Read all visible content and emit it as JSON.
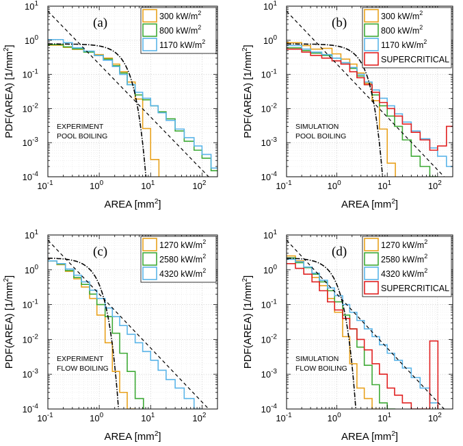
{
  "chart_data": [
    {
      "panel": "(a)",
      "type": "line",
      "xlabel": "AREA",
      "xlabel_unit": "[mm",
      "xlabel_unit_tail": "]",
      "ylabel": "PDF(AREA)",
      "ylabel_unit": "[1/mm",
      "xlim": [
        0.1,
        200
      ],
      "ylim": [
        0.0001,
        10
      ],
      "xscale": "log",
      "yscale": "log",
      "grid": true,
      "legend": "top-right",
      "annotation": [
        "EXPERIMENT",
        "POOL BOILING"
      ],
      "series": [
        {
          "name": "300 kW/m",
          "color": "#E8A11C",
          "x": [
            0.1,
            0.2,
            0.3,
            0.5,
            0.8,
            1.2,
            1.8,
            2.5,
            3.5,
            5,
            7,
            10
          ],
          "y": [
            0.72,
            0.62,
            0.54,
            0.46,
            0.38,
            0.3,
            0.2,
            0.12,
            0.06,
            0.019,
            0.0026,
            0.00032
          ]
        },
        {
          "name": "800 kW/m",
          "color": "#3DA935",
          "x": [
            0.1,
            0.2,
            0.3,
            0.5,
            0.8,
            1.2,
            1.8,
            2.5,
            3.5,
            5,
            7,
            10,
            14,
            20,
            30,
            45,
            70,
            100,
            150
          ],
          "y": [
            0.75,
            0.64,
            0.56,
            0.45,
            0.36,
            0.28,
            0.18,
            0.11,
            0.05,
            0.025,
            0.018,
            0.012,
            0.008,
            0.005,
            0.0022,
            0.0011,
            0.0006,
            0.00035,
            0.00015
          ]
        },
        {
          "name": "1170 kW/m",
          "color": "#5AB4E8",
          "x": [
            0.1,
            0.2,
            0.3,
            0.5,
            0.8,
            1.2,
            1.8,
            2.5,
            3.5,
            5,
            7,
            10,
            14,
            20,
            30,
            45,
            70,
            100,
            150
          ],
          "y": [
            1.05,
            0.85,
            0.6,
            0.48,
            0.36,
            0.26,
            0.17,
            0.1,
            0.05,
            0.03,
            0.02,
            0.012,
            0.0075,
            0.0045,
            0.0025,
            0.0014,
            0.0008,
            0.00045,
            0.00018
          ]
        }
      ]
    },
    {
      "panel": "(b)",
      "type": "line",
      "xlabel": "AREA",
      "xlabel_unit": "[mm",
      "xlabel_unit_tail": "]",
      "ylabel": "PDF(AREA)",
      "ylabel_unit": "[1/mm",
      "xlim": [
        0.1,
        200
      ],
      "ylim": [
        0.0001,
        10
      ],
      "xscale": "log",
      "yscale": "log",
      "grid": true,
      "legend": "top-right",
      "annotation": [
        "SIMULATION",
        "POOL BOILING"
      ],
      "series": [
        {
          "name": "300 kW/m",
          "color": "#E8A11C",
          "x": [
            0.1,
            0.2,
            0.3,
            0.5,
            0.8,
            1.2,
            1.8,
            2.5,
            3.5,
            5,
            7,
            10
          ],
          "y": [
            0.85,
            0.7,
            0.55,
            0.58,
            0.4,
            0.28,
            0.2,
            0.11,
            0.055,
            0.017,
            0.0025,
            0.00025
          ]
        },
        {
          "name": "800 kW/m",
          "color": "#3DA935",
          "x": [
            0.1,
            0.2,
            0.3,
            0.5,
            0.8,
            1.2,
            1.8,
            2.5,
            3.5,
            5,
            7,
            10,
            14,
            20,
            30,
            45,
            70
          ],
          "y": [
            0.6,
            0.5,
            0.42,
            0.36,
            0.3,
            0.22,
            0.15,
            0.09,
            0.05,
            0.025,
            0.012,
            0.006,
            0.003,
            0.0012,
            0.0004,
            0.0002,
            0.0001
          ]
        },
        {
          "name": "1170 kW/m",
          "color": "#5AB4E8",
          "x": [
            0.1,
            0.2,
            0.3,
            0.5,
            0.8,
            1.2,
            1.8,
            2.5,
            3.5,
            5,
            7,
            10,
            14,
            20,
            30,
            45,
            70,
            100,
            150
          ],
          "y": [
            0.7,
            0.55,
            0.45,
            0.38,
            0.3,
            0.22,
            0.16,
            0.1,
            0.06,
            0.035,
            0.02,
            0.012,
            0.007,
            0.004,
            0.0022,
            0.0013,
            0.0007,
            0.0004,
            0.0002
          ]
        },
        {
          "name": "SUPERCRITICAL",
          "color": "#E02020",
          "x": [
            0.1,
            0.2,
            0.3,
            0.5,
            0.8,
            1.2,
            1.8,
            2.5,
            3.5,
            5,
            7,
            10,
            14,
            20,
            30,
            45,
            70,
            100,
            150
          ],
          "y": [
            0.55,
            0.45,
            0.36,
            0.3,
            0.25,
            0.2,
            0.12,
            0.08,
            0.05,
            0.03,
            0.015,
            0.01,
            0.006,
            0.0035,
            0.002,
            0.0012,
            0.0006,
            0.0008,
            0.003
          ]
        }
      ]
    },
    {
      "panel": "(c)",
      "type": "line",
      "xlabel": "AREA",
      "xlabel_unit": "[mm",
      "xlabel_unit_tail": "]",
      "ylabel": "PDF(AREA)",
      "ylabel_unit": "[1/mm",
      "xlim": [
        0.1,
        200
      ],
      "ylim": [
        0.0001,
        10
      ],
      "xscale": "log",
      "yscale": "log",
      "grid": true,
      "legend": "top-right",
      "annotation": [
        "EXPERIMENT",
        "FLOW BOILING"
      ],
      "series": [
        {
          "name": "1270 kW/m",
          "color": "#E8A11C",
          "x": [
            0.1,
            0.15,
            0.22,
            0.32,
            0.45,
            0.65,
            0.9,
            1.3,
            1.8,
            2.5,
            3.5
          ],
          "y": [
            1.8,
            1.4,
            0.9,
            0.55,
            0.32,
            0.15,
            0.05,
            0.008,
            0.0012,
            0.0003,
            0.0001
          ]
        },
        {
          "name": "2580 kW/m",
          "color": "#3DA935",
          "x": [
            0.1,
            0.15,
            0.22,
            0.32,
            0.45,
            0.65,
            0.9,
            1.3,
            1.8,
            2.5,
            3.5,
            5
          ],
          "y": [
            1.8,
            1.45,
            0.95,
            0.6,
            0.38,
            0.2,
            0.1,
            0.045,
            0.015,
            0.004,
            0.0012,
            0.0002
          ]
        },
        {
          "name": "4320 kW/m",
          "color": "#5AB4E8",
          "x": [
            0.1,
            0.15,
            0.22,
            0.32,
            0.45,
            0.65,
            0.9,
            1.3,
            1.8,
            2.5,
            3.5,
            5,
            7,
            10,
            14,
            20,
            30,
            45,
            70
          ],
          "y": [
            1.8,
            1.5,
            1.05,
            0.7,
            0.45,
            0.26,
            0.15,
            0.08,
            0.045,
            0.025,
            0.014,
            0.008,
            0.0045,
            0.0025,
            0.0013,
            0.0007,
            0.0004,
            0.0002,
            0.0001
          ]
        }
      ]
    },
    {
      "panel": "(d)",
      "type": "line",
      "xlabel": "AREA",
      "xlabel_unit": "[mm",
      "xlabel_unit_tail": "]",
      "ylabel": "PDF(AREA)",
      "ylabel_unit": "[1/mm",
      "xlim": [
        0.1,
        200
      ],
      "ylim": [
        0.0001,
        10
      ],
      "xscale": "log",
      "yscale": "log",
      "grid": true,
      "legend": "top-right",
      "annotation": [
        "SIMULATION",
        "FLOW BOILING"
      ],
      "series": [
        {
          "name": "1270 kW/m",
          "color": "#E8A11C",
          "x": [
            0.1,
            0.15,
            0.22,
            0.32,
            0.45,
            0.65,
            0.9,
            1.3,
            1.8,
            2.5,
            3.5,
            5
          ],
          "y": [
            2.5,
            1.8,
            1.2,
            0.6,
            0.35,
            0.15,
            0.06,
            0.012,
            0.002,
            0.0004,
            0.0002,
            0.0001
          ]
        },
        {
          "name": "2580 kW/m",
          "color": "#3DA935",
          "x": [
            0.1,
            0.15,
            0.22,
            0.32,
            0.45,
            0.65,
            0.9,
            1.3,
            1.8,
            2.5,
            3.5,
            5,
            7,
            10
          ],
          "y": [
            2.2,
            1.6,
            1.15,
            0.75,
            0.45,
            0.25,
            0.12,
            0.05,
            0.02,
            0.006,
            0.0018,
            0.0005,
            0.00015,
            0.0001
          ]
        },
        {
          "name": "4320 kW/m",
          "color": "#5AB4E8",
          "x": [
            0.1,
            0.15,
            0.22,
            0.32,
            0.45,
            0.65,
            0.9,
            1.3,
            1.8,
            2.5,
            3.5,
            5,
            7,
            10,
            14,
            20,
            30,
            45,
            70
          ],
          "y": [
            2.0,
            1.7,
            1.2,
            0.8,
            0.5,
            0.3,
            0.18,
            0.1,
            0.06,
            0.035,
            0.02,
            0.012,
            0.007,
            0.004,
            0.0025,
            0.0015,
            0.0008,
            0.0004,
            0.00015
          ]
        },
        {
          "name": "SUPERCRITICAL",
          "color": "#E02020",
          "x": [
            0.1,
            0.15,
            0.22,
            0.32,
            0.45,
            0.65,
            0.9,
            1.3,
            1.8,
            2.5,
            3.5,
            5,
            7,
            10,
            14,
            20,
            30,
            45,
            70
          ],
          "y": [
            1.5,
            1.1,
            0.75,
            0.45,
            0.25,
            0.12,
            0.07,
            0.04,
            0.02,
            0.01,
            0.005,
            0.002,
            0.001,
            0.0004,
            0.00025,
            0.00015,
            0.0001,
            0.0001,
            0.009
          ]
        }
      ]
    }
  ]
}
